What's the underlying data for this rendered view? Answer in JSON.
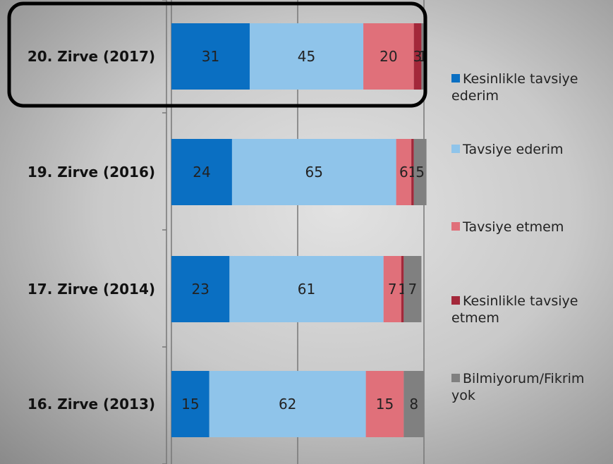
{
  "chart_data": {
    "type": "stacked-bar-horizontal",
    "categories": [
      "20. Zirve (2017)",
      "19. Zirve (2016)",
      "17. Zirve (2014)",
      "16. Zirve (2013)"
    ],
    "series": [
      {
        "name": "Kesinlikle tavsiye ederim",
        "color": "#0a6fc2",
        "values": [
          31,
          24,
          23,
          15
        ]
      },
      {
        "name": "Tavsiye ederim",
        "color": "#8fc4ea",
        "values": [
          45,
          65,
          61,
          62
        ]
      },
      {
        "name": "Tavsiye etmem",
        "color": "#e0707a",
        "values": [
          20,
          6,
          7,
          15
        ]
      },
      {
        "name": "Kesinlikle tavsiye etmem",
        "color": "#a3283a",
        "values": [
          3,
          1,
          1,
          null
        ]
      },
      {
        "name": "Bilmiyorum/Fikrim yok",
        "color": "#808080",
        "values": [
          1,
          5,
          7,
          8
        ]
      }
    ],
    "xlim": [
      0,
      100
    ],
    "xticks": [
      0,
      50,
      100
    ],
    "grid": true
  }
}
